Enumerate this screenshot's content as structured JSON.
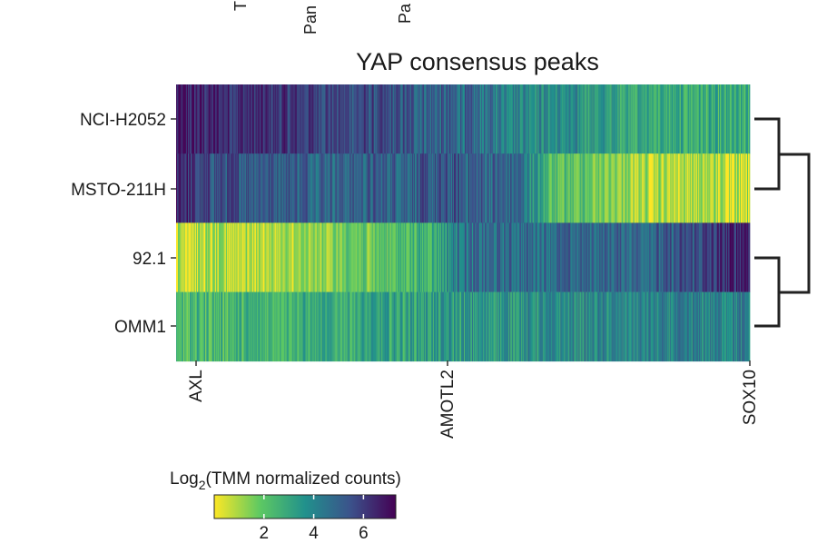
{
  "chart_data": {
    "type": "heatmap",
    "title": "YAP consensus peaks",
    "top_labels": [
      "T",
      "Pan",
      "Pa"
    ],
    "rows": [
      "NCI-H2052",
      "MSTO-211H",
      "92.1",
      "OMM1"
    ],
    "x_tick_labels": [
      "AXL",
      "AMOTL2",
      "SOX10"
    ],
    "x_tick_fraction": [
      0.035,
      0.475,
      0.995
    ],
    "n_peaks": 630,
    "row_profiles": [
      {
        "name": "NCI-H2052",
        "knots": [
          [
            0,
            6.6
          ],
          [
            0.25,
            5.9
          ],
          [
            0.5,
            4.8
          ],
          [
            0.65,
            3.8
          ],
          [
            0.85,
            2.8
          ],
          [
            1.0,
            2.6
          ]
        ]
      },
      {
        "name": "MSTO-211H",
        "knots": [
          [
            0,
            6.9
          ],
          [
            0.04,
            5.6
          ],
          [
            0.3,
            5.0
          ],
          [
            0.5,
            5.2
          ],
          [
            0.6,
            4.8
          ],
          [
            0.65,
            2.4
          ],
          [
            0.8,
            1.0
          ],
          [
            1.0,
            0.8
          ]
        ]
      },
      {
        "name": "92.1",
        "knots": [
          [
            0,
            0.8
          ],
          [
            0.2,
            0.9
          ],
          [
            0.3,
            1.6
          ],
          [
            0.45,
            2.8
          ],
          [
            0.5,
            4.6
          ],
          [
            0.85,
            5.0
          ],
          [
            0.95,
            6.0
          ],
          [
            1.0,
            7.0
          ]
        ]
      },
      {
        "name": "OMM1",
        "knots": [
          [
            0,
            2.3
          ],
          [
            0.3,
            2.9
          ],
          [
            0.5,
            3.4
          ],
          [
            0.7,
            3.8
          ],
          [
            0.9,
            4.0
          ],
          [
            1.0,
            4.1
          ]
        ]
      }
    ],
    "dendrogram": [
      [
        "NCI-H2052",
        "MSTO-211H"
      ],
      [
        "92.1",
        "OMM1"
      ]
    ],
    "legend": {
      "title_prefix": "Log",
      "title_sub": "2",
      "title_suffix": "(TMM normalized counts)",
      "min": 0,
      "max": 7.3,
      "ticks": [
        2,
        4,
        6
      ]
    },
    "colormap": [
      "#fde725",
      "#5ec962",
      "#21918c",
      "#3b528b",
      "#440154"
    ]
  }
}
